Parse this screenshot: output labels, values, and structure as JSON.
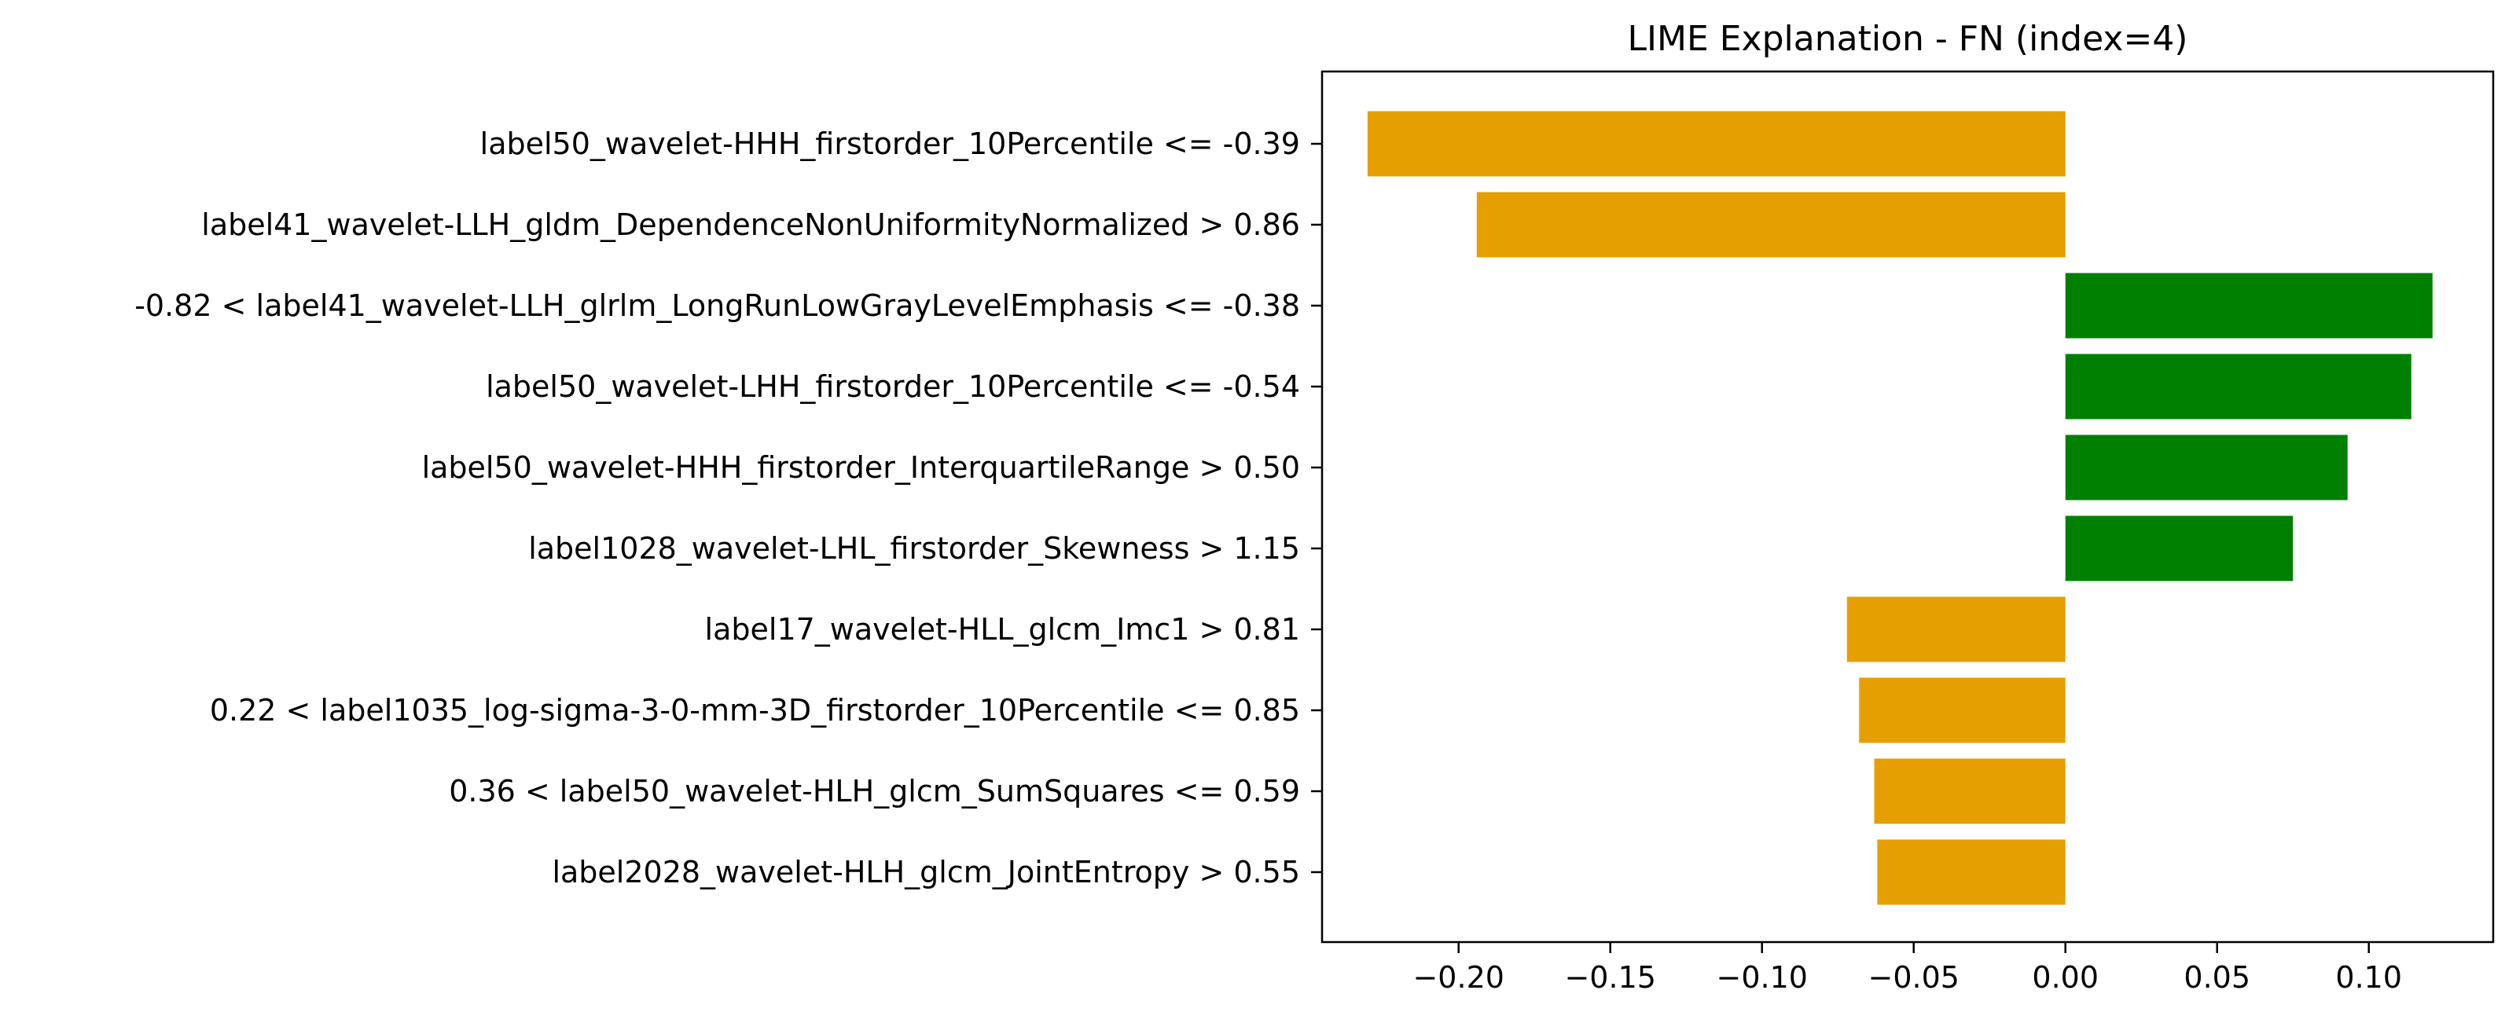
{
  "chart_data": {
    "type": "bar",
    "orientation": "horizontal",
    "title": "LIME Explanation - FN (index=4)",
    "xlabel": "",
    "ylabel": "",
    "xlim": [
      -0.245,
      0.141
    ],
    "grid": false,
    "colors": {
      "negative": "#E69F00",
      "positive": "#008000"
    },
    "categories": [
      "label50_wavelet-HHH_firstorder_10Percentile <= -0.39",
      "label41_wavelet-LLH_gldm_DependenceNonUniformityNormalized > 0.86",
      "-0.82 < label41_wavelet-LLH_glrlm_LongRunLowGrayLevelEmphasis <= -0.38",
      "label50_wavelet-LHH_firstorder_10Percentile <= -0.54",
      "label50_wavelet-HHH_firstorder_InterquartileRange > 0.50",
      "label1028_wavelet-LHL_firstorder_Skewness > 1.15",
      "label17_wavelet-HLL_glcm_Imc1 > 0.81",
      "0.22 < label1035_log-sigma-3-0-mm-3D_firstorder_10Percentile <= 0.85",
      "0.36 < label50_wavelet-HLH_glcm_SumSquares <= 0.59",
      "label2028_wavelet-HLH_glcm_JointEntropy > 0.55"
    ],
    "values": [
      -0.23,
      -0.194,
      0.121,
      0.114,
      0.093,
      0.075,
      -0.072,
      -0.068,
      -0.063,
      -0.062
    ],
    "xticks": [
      -0.2,
      -0.15,
      -0.1,
      -0.05,
      0.0,
      0.05,
      0.1
    ],
    "xtick_labels": [
      "−0.20",
      "−0.15",
      "−0.10",
      "−0.05",
      "0.00",
      "0.05",
      "0.10"
    ]
  }
}
